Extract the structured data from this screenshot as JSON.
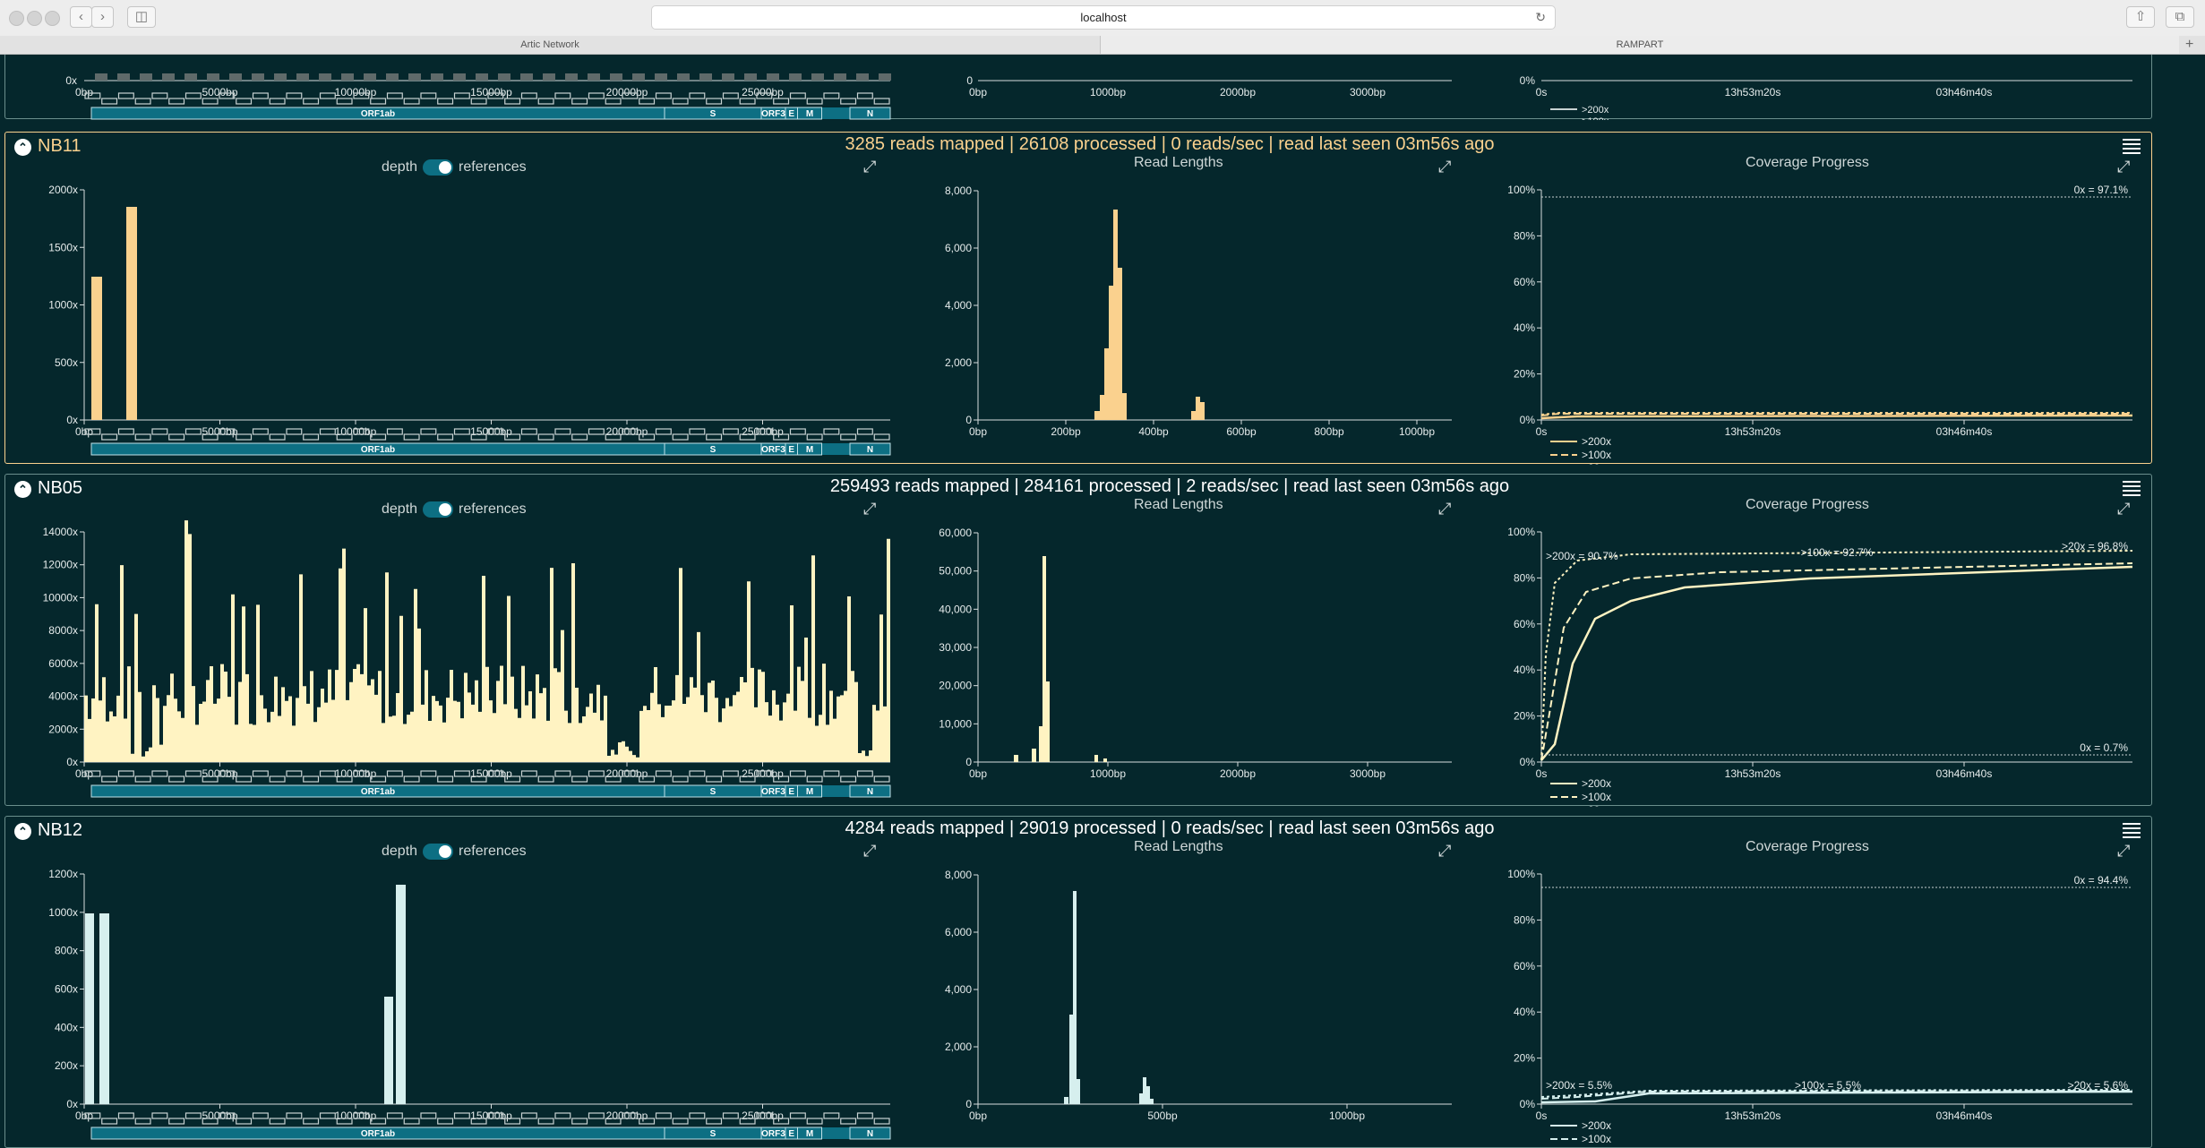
{
  "browser": {
    "url": "localhost",
    "tabs": [
      "Artic Network",
      "RAMPART"
    ]
  },
  "controls": {
    "depth_label": "depth",
    "references_label": "references"
  },
  "titles": {
    "read_lengths": "Read Lengths",
    "coverage_progress": "Coverage Progress"
  },
  "genome_annotations": {
    "orf1ab": "ORF1ab",
    "s": "S",
    "orf3": "ORF3",
    "e": "E",
    "m": "M",
    "n": "N",
    "orf": "ORF"
  },
  "legend": {
    "depth_200": ">200x",
    "depth_100": ">100x",
    "depth_20": ">20x"
  },
  "colors": {
    "background": "#05272c",
    "selected": "#fad18e",
    "nb05": "#fff3c2",
    "nb12": "#d6efee",
    "gene_bar": "#0d6f83"
  },
  "top_partial": {
    "coverage_yticks": [
      "0x"
    ],
    "readlen_yticks": [
      "0"
    ],
    "coverage_xticks": [
      "0bp",
      "5000bp",
      "10000bp",
      "15000bp",
      "20000bp",
      "25000bp"
    ],
    "readlen_xticks": [
      "0bp",
      "1000bp",
      "2000bp",
      "3000bp"
    ],
    "progress_yticks": [
      "0%"
    ],
    "progress_xticks": [
      "0s",
      "13h53m20s",
      "03h46m40s"
    ]
  },
  "panels": [
    {
      "name": "NB11",
      "summary": "3285 reads mapped | 26108 processed | 0 reads/sec | read last seen 03m56s ago",
      "coverage_yticks": [
        "0x",
        "500x",
        "1000x",
        "1500x",
        "2000x"
      ],
      "coverage_xticks": [
        "0bp",
        "5000bp",
        "10000bp",
        "15000bp",
        "20000bp",
        "25000bp"
      ],
      "readlen_yticks": [
        "0",
        "2,000",
        "4,000",
        "6,000",
        "8,000"
      ],
      "readlen_xticks": [
        "0bp",
        "200bp",
        "400bp",
        "600bp",
        "800bp",
        "1000bp"
      ],
      "progress_yticks": [
        "0%",
        "20%",
        "40%",
        "60%",
        "80%",
        "100%"
      ],
      "progress_xticks": [
        "0s",
        "13h53m20s",
        "03h46m40s"
      ],
      "annotations": {
        "zero": "0x = 97.1%"
      }
    },
    {
      "name": "NB05",
      "summary": "259493 reads mapped | 284161 processed | 2 reads/sec | read last seen 03m56s ago",
      "coverage_yticks": [
        "0x",
        "2000x",
        "4000x",
        "6000x",
        "8000x",
        "10000x",
        "12000x",
        "14000x"
      ],
      "coverage_xticks": [
        "0bp",
        "5000bp",
        "10000bp",
        "15000bp",
        "20000bp",
        "25000bp"
      ],
      "readlen_yticks": [
        "0",
        "10,000",
        "20,000",
        "30,000",
        "40,000",
        "50,000",
        "60,000"
      ],
      "readlen_xticks": [
        "0bp",
        "1000bp",
        "2000bp",
        "3000bp"
      ],
      "progress_yticks": [
        "0%",
        "20%",
        "40%",
        "60%",
        "80%",
        "100%"
      ],
      "progress_xticks": [
        "0s",
        "13h53m20s",
        "03h46m40s"
      ],
      "annotations": {
        "a200": ">200x = 90.7%",
        "a100": ">100x = 92.7%",
        "a20": ">20x = 96.8%",
        "zero": "0x = 0.7%"
      }
    },
    {
      "name": "NB12",
      "summary": "4284 reads mapped | 29019 processed | 0 reads/sec | read last seen 03m56s ago",
      "coverage_yticks": [
        "0x",
        "200x",
        "400x",
        "600x",
        "800x",
        "1000x",
        "1200x"
      ],
      "coverage_xticks": [
        "0bp",
        "5000bp",
        "10000bp",
        "15000bp",
        "20000bp",
        "25000bp"
      ],
      "readlen_yticks": [
        "0",
        "2,000",
        "4,000",
        "6,000",
        "8,000"
      ],
      "readlen_xticks": [
        "0bp",
        "500bp",
        "1000bp"
      ],
      "progress_yticks": [
        "0%",
        "20%",
        "40%",
        "60%",
        "80%",
        "100%"
      ],
      "progress_xticks": [
        "0s",
        "13h53m20s",
        "03h46m40s"
      ],
      "annotations": {
        "a200": ">200x = 5.5%",
        "a100": ">100x = 5.5%",
        "a20": ">20x = 5.6%",
        "zero": "0x = 94.4%"
      }
    }
  ]
}
